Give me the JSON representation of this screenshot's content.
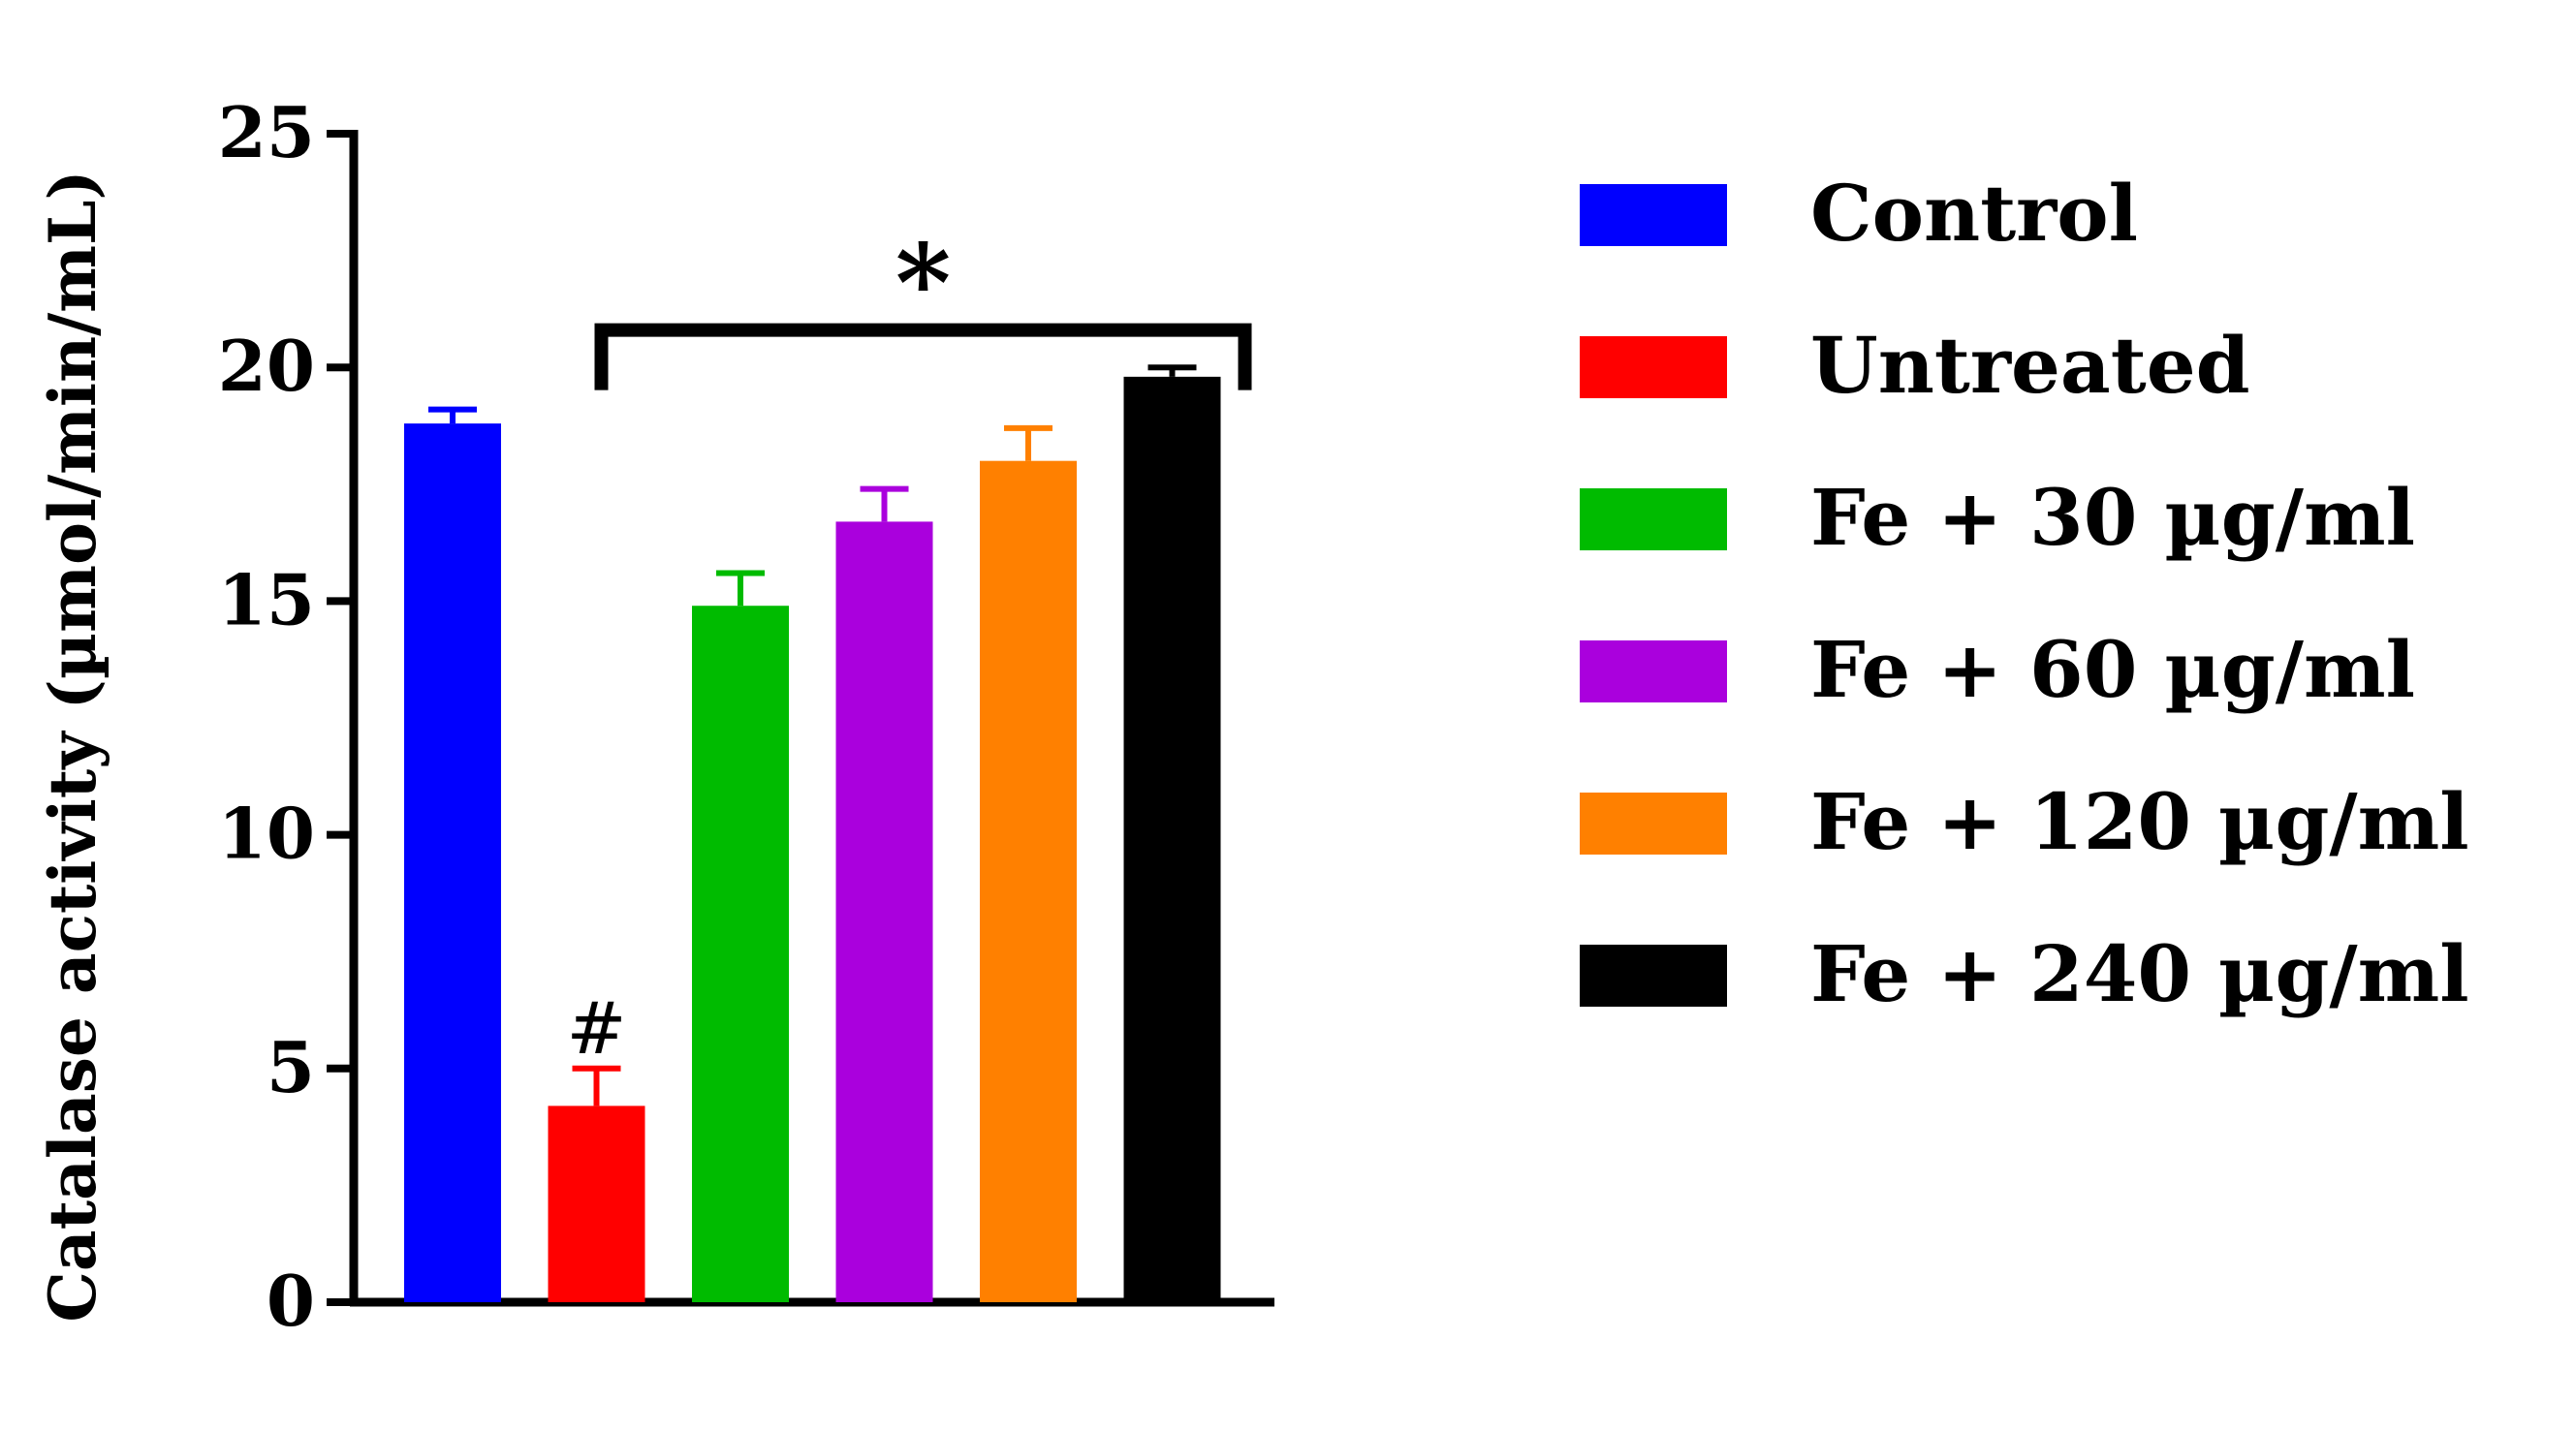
{
  "chart_data": {
    "type": "bar",
    "ylabel": "Catalase activity (µmol/min/mL)",
    "xlabel": "",
    "ylim": [
      0,
      25
    ],
    "yticks": [
      0,
      5,
      10,
      15,
      20,
      25
    ],
    "grid": false,
    "legend_position": "right",
    "categories": [
      "Control",
      "Untreated",
      "Fe + 30 µg/ml",
      "Fe + 60 µg/ml",
      "Fe + 120 µg/ml",
      "Fe + 240 µg/ml"
    ],
    "values": [
      18.8,
      4.2,
      14.9,
      16.7,
      18.0,
      19.8
    ],
    "errors": [
      0.3,
      0.8,
      0.7,
      0.7,
      0.7,
      0.2
    ],
    "colors": [
      "#0000ff",
      "#ff0000",
      "#00bb00",
      "#aa00dd",
      "#ff8000",
      "#000000"
    ],
    "annotations": {
      "hash": {
        "text": "#",
        "category": "Untreated"
      },
      "star": {
        "text": "*",
        "from": "Untreated",
        "to": "Fe + 240 µg/ml",
        "level": 20.8
      }
    }
  }
}
